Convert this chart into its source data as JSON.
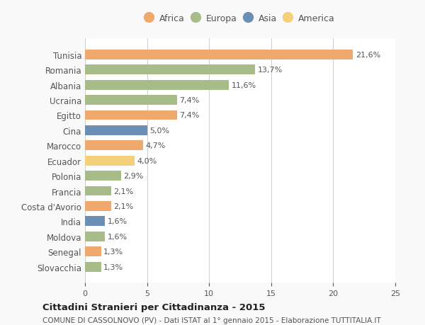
{
  "countries": [
    "Tunisia",
    "Romania",
    "Albania",
    "Ucraina",
    "Egitto",
    "Cina",
    "Marocco",
    "Ecuador",
    "Polonia",
    "Francia",
    "Costa d'Avorio",
    "India",
    "Moldova",
    "Senegal",
    "Slovacchia"
  ],
  "values": [
    21.6,
    13.7,
    11.6,
    7.4,
    7.4,
    5.0,
    4.7,
    4.0,
    2.9,
    2.1,
    2.1,
    1.6,
    1.6,
    1.3,
    1.3
  ],
  "labels": [
    "21,6%",
    "13,7%",
    "11,6%",
    "7,4%",
    "7,4%",
    "5,0%",
    "4,7%",
    "4,0%",
    "2,9%",
    "2,1%",
    "2,1%",
    "1,6%",
    "1,6%",
    "1,3%",
    "1,3%"
  ],
  "continents": [
    "Africa",
    "Europa",
    "Europa",
    "Europa",
    "Africa",
    "Asia",
    "Africa",
    "America",
    "Europa",
    "Europa",
    "Africa",
    "Asia",
    "Europa",
    "Africa",
    "Europa"
  ],
  "continent_colors": {
    "Africa": "#F0A96C",
    "Europa": "#A8BC8A",
    "Asia": "#6B8EB5",
    "America": "#F5D07A"
  },
  "legend_order": [
    "Africa",
    "Europa",
    "Asia",
    "America"
  ],
  "title": "Cittadini Stranieri per Cittadinanza - 2015",
  "subtitle": "COMUNE DI CASSOLNOVO (PV) - Dati ISTAT al 1° gennaio 2015 - Elaborazione TUTTITALIA.IT",
  "xlim": [
    0,
    25
  ],
  "xticks": [
    0,
    5,
    10,
    15,
    20,
    25
  ],
  "background_color": "#f9f9f9",
  "bar_background": "#ffffff",
  "grid_color": "#cccccc",
  "text_color": "#555555",
  "title_color": "#222222",
  "subtitle_color": "#555555"
}
